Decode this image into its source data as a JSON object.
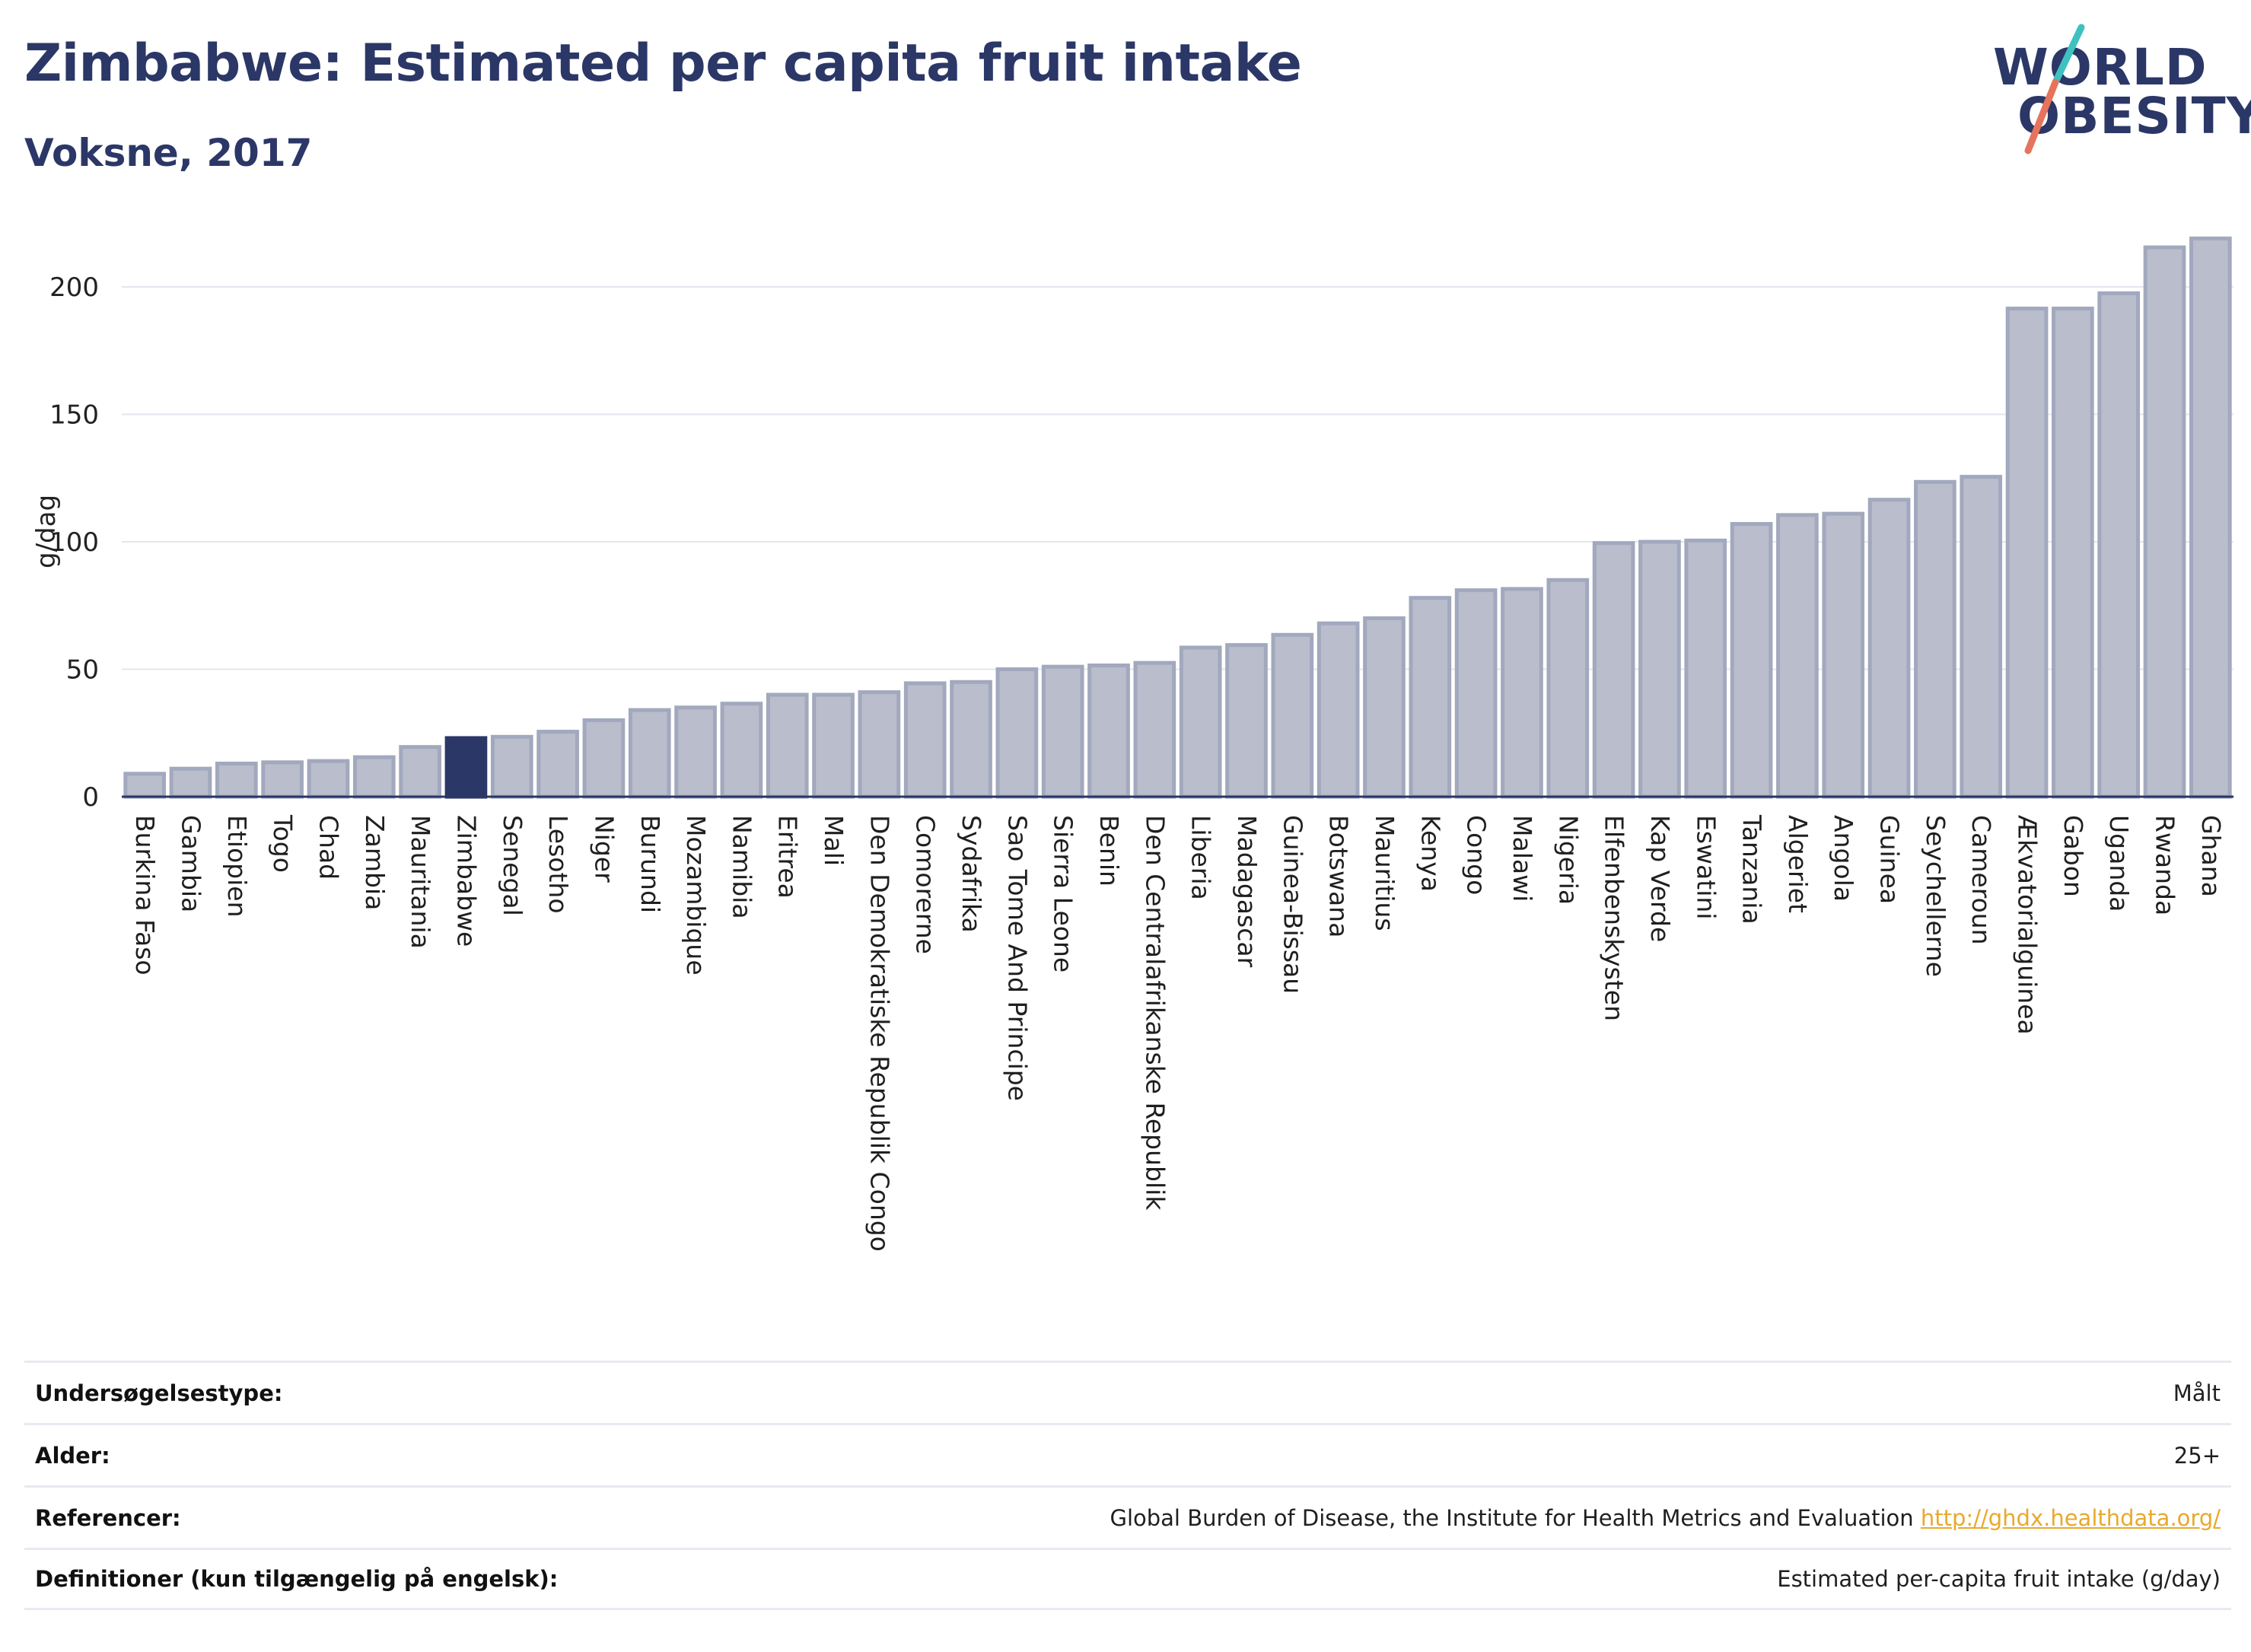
{
  "header": {
    "title": "Zimbabwe: Estimated per capita fruit intake",
    "subtitle": "Voksne, 2017"
  },
  "logo": {
    "line1": "WORLD",
    "line2": "OBESITY"
  },
  "colors": {
    "title": "#2b3766",
    "bar": "#b9bdcc",
    "bar_border": "#a2a8bd",
    "highlight": "#2b3766",
    "logo_teal": "#3fc1c0",
    "logo_coral": "#e6735c",
    "link": "#e8a92d"
  },
  "chart_data": {
    "type": "bar",
    "ylabel": "g/dag",
    "xlabel": "",
    "ylim": [
      0,
      220
    ],
    "yticks": [
      0,
      50,
      100,
      150,
      200
    ],
    "grid": true,
    "highlight": "Zimbabwe",
    "categories": [
      "Burkina Faso",
      "Gambia",
      "Etiopien",
      "Togo",
      "Chad",
      "Zambia",
      "Mauritania",
      "Zimbabwe",
      "Senegal",
      "Lesotho",
      "Niger",
      "Burundi",
      "Mozambique",
      "Namibia",
      "Eritrea",
      "Mali",
      "Den Demokratiske Republik Congo",
      "Comorerne",
      "Sydafrika",
      "Sao Tome And Principe",
      "Sierra Leone",
      "Benin",
      "Den Centralafrikanske Republik",
      "Liberia",
      "Madagascar",
      "Guinea-Bissau",
      "Botswana",
      "Mauritius",
      "Kenya",
      "Congo",
      "Malawi",
      "Nigeria",
      "Elfenbenskysten",
      "Kap Verde",
      "Eswatini",
      "Tanzania",
      "Algeriet",
      "Angola",
      "Guinea",
      "Seychellerne",
      "Cameroun",
      "Ækvatorialguinea",
      "Gabon",
      "Uganda",
      "Rwanda",
      "Ghana"
    ],
    "values": [
      9,
      11,
      13,
      13.5,
      14,
      15.5,
      19.5,
      23,
      23.5,
      25.5,
      30,
      34,
      35,
      36.5,
      40,
      40,
      41,
      44.5,
      45,
      50,
      51,
      51.5,
      52.5,
      58.5,
      59.5,
      63.5,
      68,
      70,
      78,
      81,
      81.5,
      85,
      99.5,
      100,
      100.5,
      107,
      110.5,
      111,
      116.5,
      123.5,
      125.5,
      191.5,
      191.5,
      197.5,
      215.5,
      219
    ]
  },
  "info": {
    "rows": [
      {
        "label": "Undersøgelsestype:",
        "value": "Målt"
      },
      {
        "label": "Alder:",
        "value": "25+"
      },
      {
        "label": "Referencer:",
        "value": "Global Burden of Disease, the Institute for Health Metrics and Evaluation",
        "link": "http://ghdx.healthdata.org/"
      },
      {
        "label": "Definitioner (kun tilgængelig på engelsk):",
        "value": "Estimated per-capita fruit intake (g/day)"
      }
    ]
  }
}
